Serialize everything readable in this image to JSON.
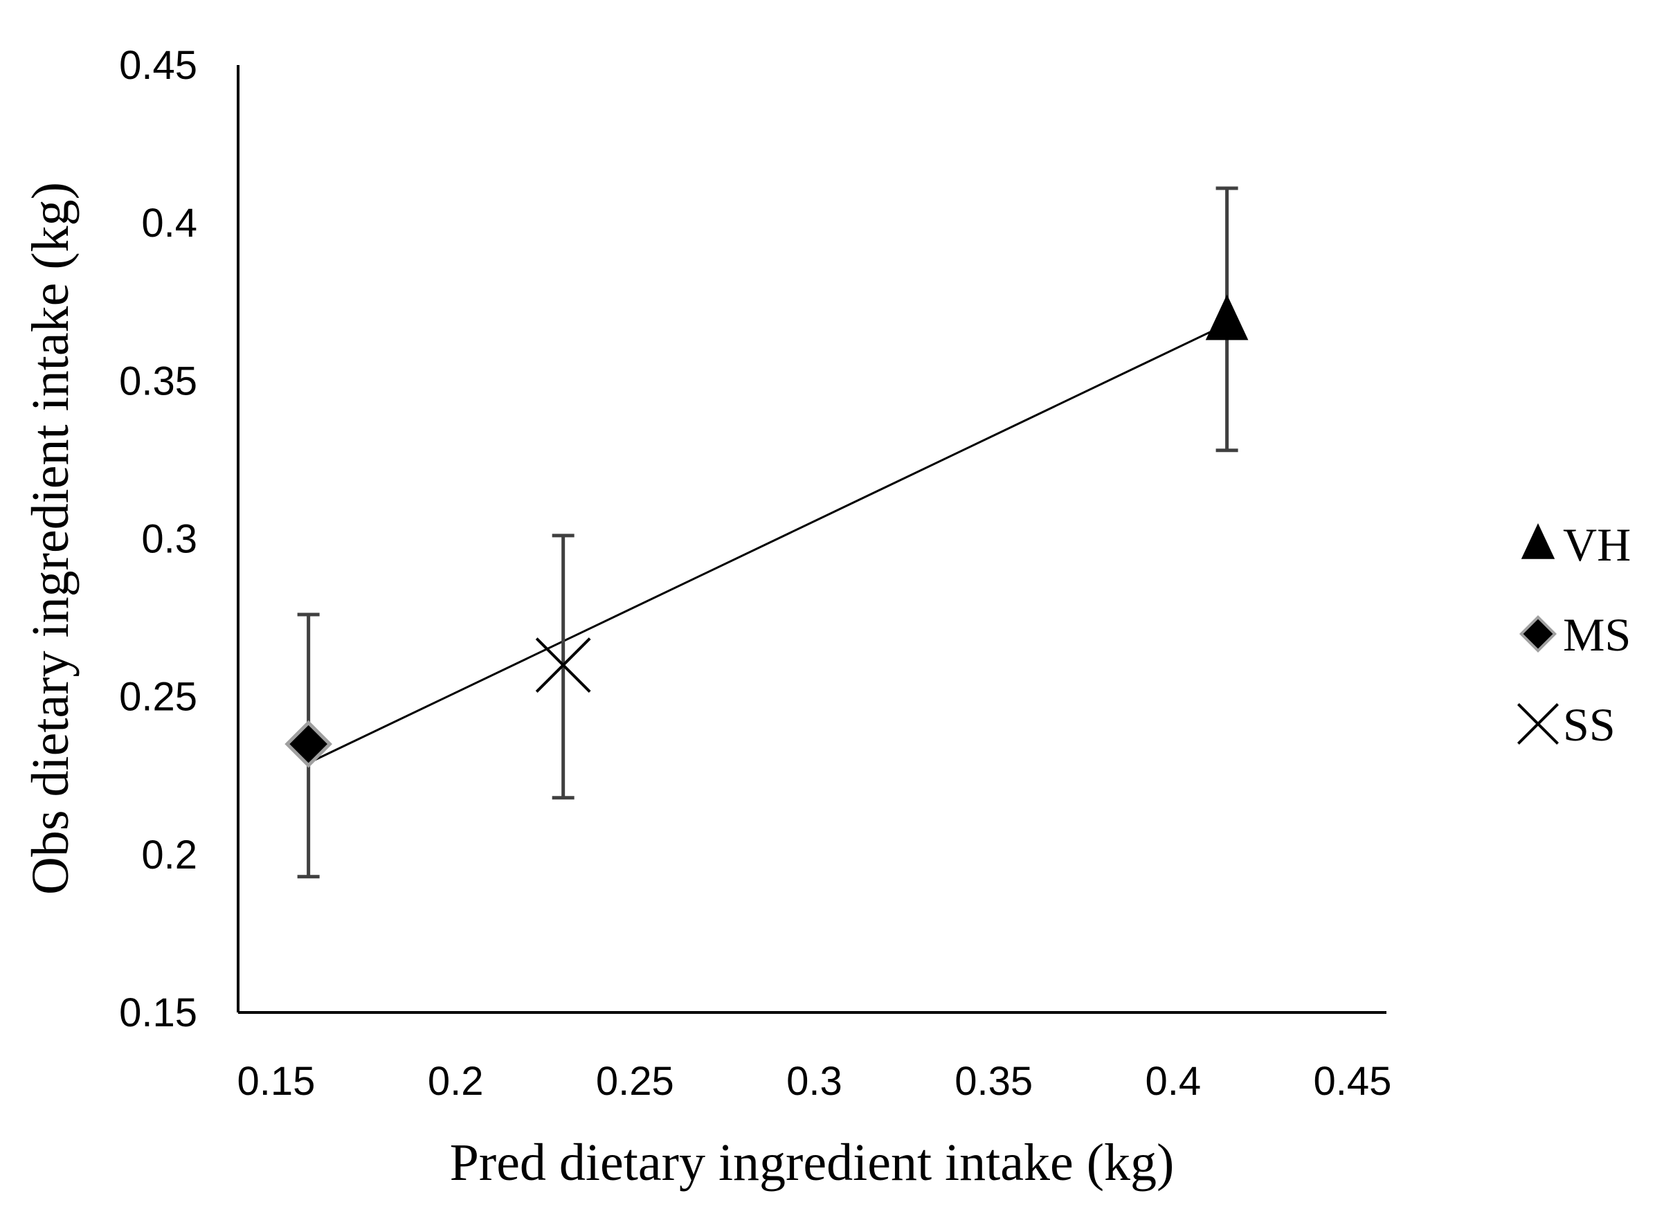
{
  "chart_data": {
    "type": "scatter",
    "title": "",
    "xlabel": "Pred dietary ingredient intake (kg)",
    "ylabel": "Obs dietary ingredient intake (kg)",
    "xlim": [
      0.15,
      0.45
    ],
    "ylim": [
      0.15,
      0.45
    ],
    "xticks": [
      "0.15",
      "0.2",
      "0.25",
      "0.3",
      "0.35",
      "0.4",
      "0.45"
    ],
    "yticks": [
      "0.15",
      "0.2",
      "0.25",
      "0.3",
      "0.35",
      "0.4",
      "0.45"
    ],
    "grid": false,
    "legend_position": "right",
    "series": [
      {
        "name": "VH",
        "marker": "triangle",
        "x": 0.415,
        "y": 0.369,
        "err_low": 0.328,
        "err_high": 0.411
      },
      {
        "name": "MS",
        "marker": "diamond",
        "x": 0.159,
        "y": 0.235,
        "err_low": 0.193,
        "err_high": 0.276
      },
      {
        "name": "SS",
        "marker": "x",
        "x": 0.23,
        "y": 0.26,
        "err_low": 0.218,
        "err_high": 0.301
      }
    ],
    "trendline": {
      "x": [
        0.159,
        0.415
      ],
      "y": [
        0.229,
        0.368
      ]
    },
    "colors": {
      "marker": "#000000",
      "errorbar": "#404040",
      "diamond_edge": "#a0a0a0",
      "axis": "#000000"
    }
  }
}
